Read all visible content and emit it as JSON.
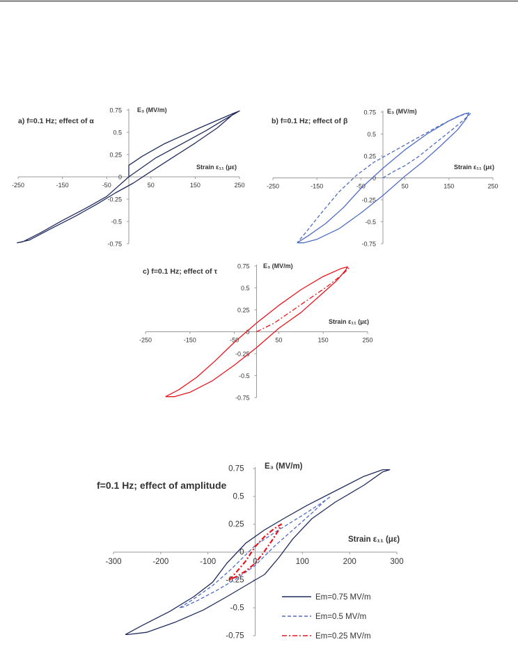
{
  "colors": {
    "navy": "#1f2a5e",
    "blue": "#4e6bc4",
    "red": "#e8141c",
    "axis": "#9a9a9a"
  },
  "chart_data": [
    {
      "id": "a",
      "type": "line",
      "title": "a) f=0.1 Hz; effect of α",
      "xlabel": "Strain ε₁₁ (με)",
      "ylabel": "E₃ (MV/m)",
      "xlim": [
        -250,
        250
      ],
      "ylim": [
        -0.75,
        0.75
      ],
      "xticks": [
        "-250",
        "-150",
        "-50",
        "50",
        "150",
        "250"
      ],
      "yticks": [
        "0.75",
        "0.5",
        "0.25",
        "0",
        "-0.25",
        "-0.5",
        "-0.75"
      ],
      "series": [
        {
          "style": "solid",
          "color": "navy",
          "x": [
            0,
            0,
            30,
            80,
            160,
            235,
            250,
            240,
            200,
            150,
            100,
            50,
            10,
            -30,
            -70,
            -120,
            -175,
            -225,
            -252,
            -240,
            -200,
            -150,
            -100,
            -50,
            0,
            60,
            120,
            175,
            215,
            240,
            250
          ],
          "y": [
            0,
            0.13,
            0.23,
            0.37,
            0.55,
            0.71,
            0.74,
            0.72,
            0.55,
            0.38,
            0.22,
            0.06,
            -0.07,
            -0.18,
            -0.3,
            -0.44,
            -0.58,
            -0.71,
            -0.74,
            -0.73,
            -0.63,
            -0.49,
            -0.36,
            -0.22,
            0,
            0.21,
            0.37,
            0.52,
            0.64,
            0.71,
            0.74
          ]
        }
      ]
    },
    {
      "id": "b",
      "type": "line",
      "title": "b) f=0.1 Hz; effect of β",
      "xlabel": "Strain ε₁₁ (με)",
      "ylabel": "E₃ (MV/m)",
      "xlim": [
        -250,
        250
      ],
      "ylim": [
        -0.75,
        0.75
      ],
      "xticks": [
        "-250",
        "-150",
        "-50",
        "50",
        "150",
        "250"
      ],
      "yticks": [
        "0.75",
        "0.5",
        "0.25",
        "0",
        "-0.25",
        "-0.5",
        "-0.75"
      ],
      "series": [
        {
          "style": "solid",
          "color": "blue",
          "x": [
            -195,
            -170,
            -130,
            -90,
            -50,
            0,
            50,
            100,
            150,
            185,
            195,
            190,
            170,
            130,
            90,
            50,
            0,
            -50,
            -100,
            -150,
            -180,
            -195
          ],
          "y": [
            -0.74,
            -0.66,
            -0.52,
            -0.34,
            -0.12,
            0.11,
            0.32,
            0.5,
            0.65,
            0.73,
            0.74,
            0.68,
            0.55,
            0.36,
            0.18,
            0.02,
            -0.2,
            -0.4,
            -0.58,
            -0.7,
            -0.74,
            -0.74
          ]
        },
        {
          "style": "dashed",
          "color": "blue",
          "x": [
            0,
            20,
            50,
            80,
            120,
            160,
            190,
            200,
            195,
            170,
            130,
            80,
            30,
            -20,
            -60,
            -100,
            -140,
            -175,
            -195
          ],
          "y": [
            0,
            0.06,
            0.14,
            0.24,
            0.4,
            0.56,
            0.69,
            0.74,
            0.74,
            0.7,
            0.6,
            0.46,
            0.32,
            0.18,
            0.03,
            -0.16,
            -0.4,
            -0.62,
            -0.74
          ]
        }
      ]
    },
    {
      "id": "c",
      "type": "line",
      "title": "c) f=0.1 Hz; effect of τ",
      "xlabel": "Strain ε₁₁ (με)",
      "ylabel": "E₃ (MV/m)",
      "xlim": [
        -250,
        250
      ],
      "ylim": [
        -0.75,
        0.75
      ],
      "xticks": [
        "-250",
        "-150",
        "-50",
        "50",
        "150",
        "250"
      ],
      "yticks": [
        "0.75",
        "0.5",
        "0.25",
        "0",
        "-0.25",
        "-0.5",
        "-0.75"
      ],
      "series": [
        {
          "style": "solid",
          "color": "red",
          "x": [
            -205,
            -175,
            -135,
            -95,
            -50,
            0,
            50,
            100,
            150,
            190,
            205,
            200,
            180,
            140,
            100,
            50,
            0,
            -50,
            -100,
            -150,
            -185,
            -205
          ],
          "y": [
            -0.74,
            -0.66,
            -0.52,
            -0.34,
            -0.12,
            0.1,
            0.3,
            0.48,
            0.63,
            0.72,
            0.74,
            0.7,
            0.58,
            0.4,
            0.22,
            0.04,
            -0.18,
            -0.38,
            -0.56,
            -0.69,
            -0.74,
            -0.74
          ]
        },
        {
          "style": "dashdot",
          "color": "red",
          "x": [
            0,
            40,
            80,
            120,
            160,
            195,
            210
          ],
          "y": [
            0,
            0.1,
            0.24,
            0.38,
            0.52,
            0.66,
            0.74
          ]
        }
      ]
    },
    {
      "id": "d",
      "type": "line",
      "title": "f=0.1 Hz; effect of amplitude",
      "xlabel": "Strain ε₁₁ (με)",
      "ylabel": "E₃ (MV/m)",
      "xlim": [
        -300,
        300
      ],
      "ylim": [
        -0.75,
        0.75
      ],
      "xticks": [
        "-300",
        "-200",
        "-100",
        "0",
        "100",
        "200",
        "300"
      ],
      "yticks": [
        "0.75",
        "0.5",
        "0.25",
        "0",
        "-0.25",
        "-0.5",
        "-0.75"
      ],
      "legend_position": "bottom-right",
      "series": [
        {
          "name": "Em=0.75 MV/m",
          "style": "solid",
          "color": "navy",
          "x": [
            -275,
            -240,
            -180,
            -130,
            -90,
            -60,
            -20,
            20,
            60,
            110,
            170,
            230,
            270,
            285,
            270,
            230,
            170,
            120,
            80,
            50,
            20,
            -20,
            -60,
            -110,
            -170,
            -230,
            -270,
            -275
          ],
          "y": [
            -0.74,
            -0.66,
            -0.53,
            -0.4,
            -0.27,
            -0.1,
            0.08,
            0.2,
            0.3,
            0.42,
            0.55,
            0.68,
            0.74,
            0.74,
            0.72,
            0.6,
            0.45,
            0.3,
            0.12,
            -0.05,
            -0.2,
            -0.3,
            -0.4,
            -0.52,
            -0.63,
            -0.72,
            -0.74,
            -0.74
          ]
        },
        {
          "name": "Em=0.5 MV/m",
          "style": "dashed",
          "color": "blue",
          "x": [
            -160,
            -130,
            -90,
            -50,
            0,
            50,
            100,
            140,
            160,
            150,
            120,
            80,
            40,
            0,
            -40,
            -80,
            -120,
            -150,
            -160
          ],
          "y": [
            -0.5,
            -0.42,
            -0.3,
            -0.15,
            0.06,
            0.2,
            0.33,
            0.44,
            0.5,
            0.47,
            0.35,
            0.2,
            0.05,
            -0.12,
            -0.24,
            -0.34,
            -0.43,
            -0.49,
            -0.5
          ]
        },
        {
          "name": "Em=0.25 MV/m",
          "style": "dashdot",
          "color": "red",
          "x": [
            -55,
            -40,
            -20,
            0,
            20,
            40,
            55,
            50,
            35,
            15,
            0,
            -20,
            -40,
            -55
          ],
          "y": [
            -0.25,
            -0.18,
            -0.08,
            0.05,
            0.14,
            0.21,
            0.25,
            0.2,
            0.1,
            -0.02,
            -0.1,
            -0.17,
            -0.22,
            -0.25
          ]
        }
      ]
    }
  ]
}
